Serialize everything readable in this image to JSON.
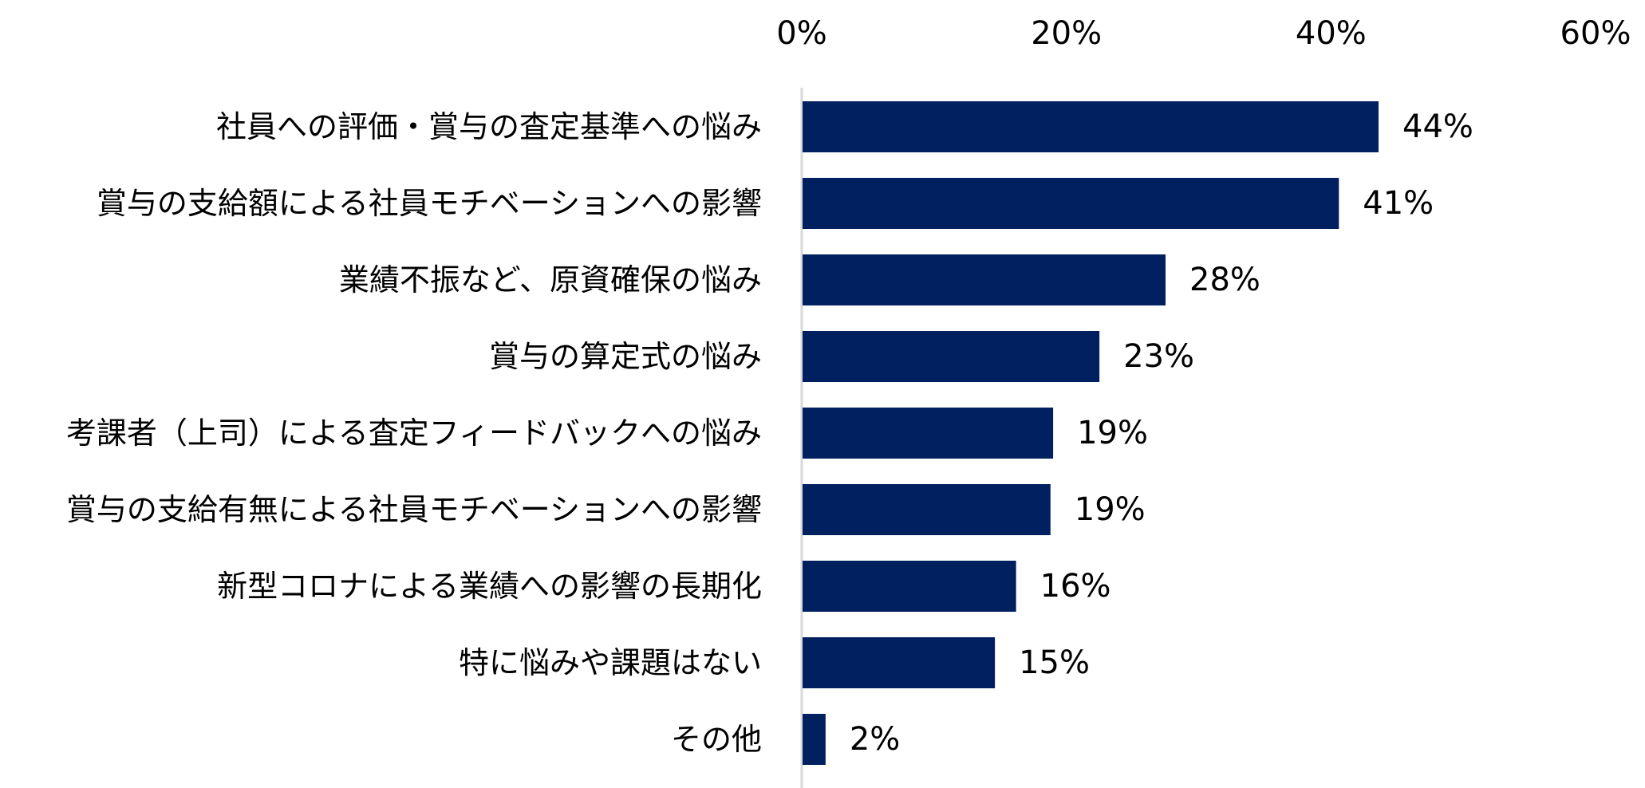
{
  "chart_data": {
    "type": "bar",
    "orientation": "horizontal",
    "title": "",
    "xlabel": "",
    "ylabel": "",
    "xlim": [
      0,
      60
    ],
    "ticks": [
      {
        "value": 0,
        "label": "0%"
      },
      {
        "value": 20,
        "label": "20%"
      },
      {
        "value": 40,
        "label": "40%"
      },
      {
        "value": 60,
        "label": "60%"
      }
    ],
    "tick_position": "top",
    "grid": false,
    "legend": "none",
    "bar_color": "#002060",
    "axis_color": "#d9d9d9",
    "categories": [
      "社員への評価・賞与の査定基準への悩み",
      "賞与の支給額による社員モチベーションへの影響",
      "業績不振など、原資確保の悩み",
      "賞与の算定式の悩み",
      "考課者（上司）による査定フィードバックへの悩み",
      "賞与の支給有無による社員モチベーションへの影響",
      "新型コロナによる業績への影響の長期化",
      "特に悩みや課題はない",
      "その他"
    ],
    "values": [
      43.6,
      40.6,
      27.5,
      22.5,
      19.0,
      18.8,
      16.2,
      14.6,
      1.8
    ],
    "data_labels": [
      "44%",
      "41%",
      "28%",
      "23%",
      "19%",
      "19%",
      "16%",
      "15%",
      "2%"
    ]
  }
}
